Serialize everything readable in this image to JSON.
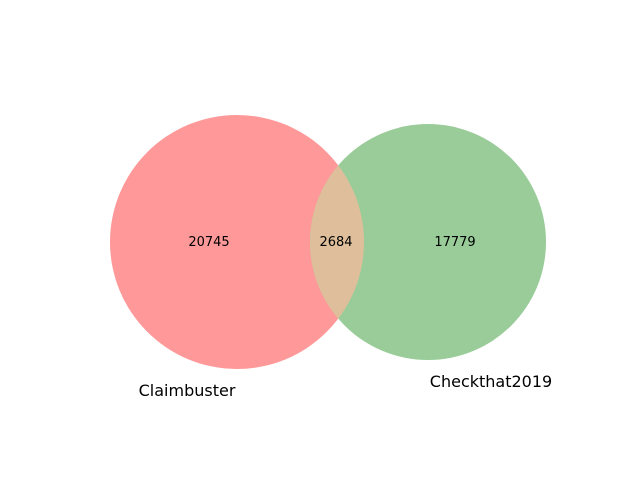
{
  "venn": {
    "sets": [
      {
        "label": "Claimbuster",
        "count": "20745",
        "color": "#ff9999"
      },
      {
        "label": "Checkthat2019",
        "count": "17779",
        "color": "#99cc99"
      }
    ],
    "intersection": {
      "count": "2684",
      "color": "#dfbf9b"
    }
  }
}
